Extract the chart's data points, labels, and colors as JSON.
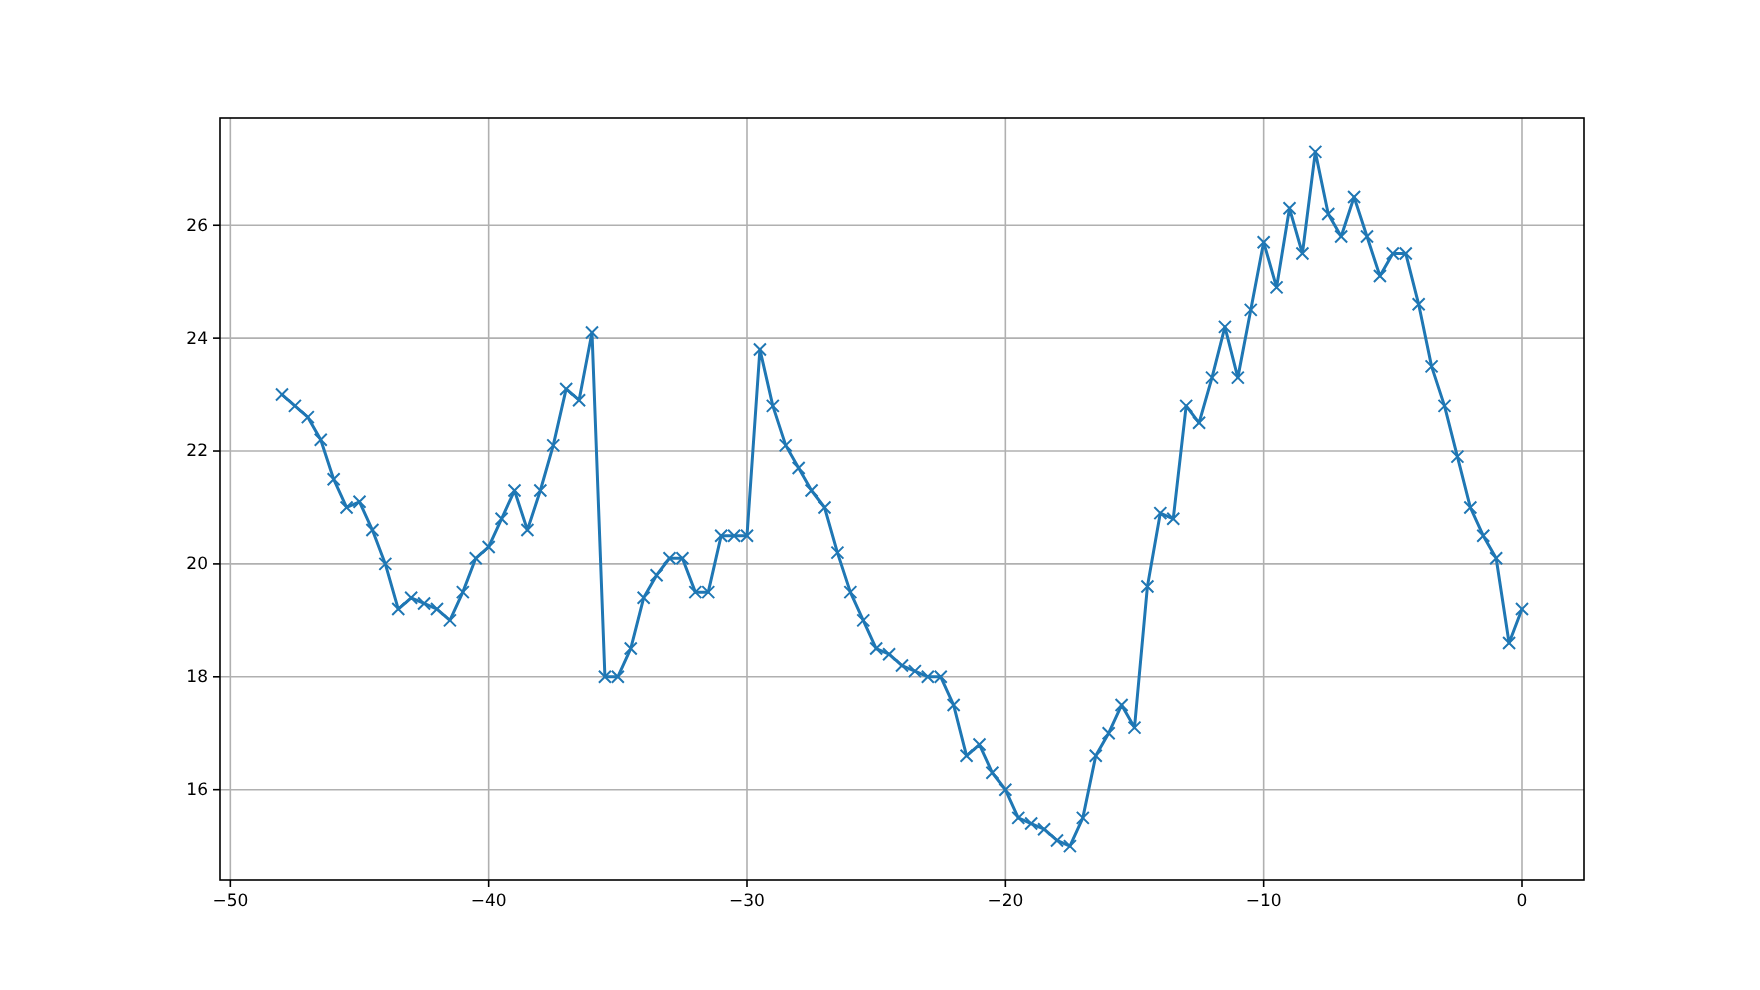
{
  "chart_data": {
    "type": "line",
    "x": [
      -48,
      -47.5,
      -47,
      -46.5,
      -46,
      -45.5,
      -45,
      -44.5,
      -44,
      -43.5,
      -43,
      -42.5,
      -42,
      -41.5,
      -41,
      -40.5,
      -40,
      -39.5,
      -39,
      -38.5,
      -38,
      -37.5,
      -37,
      -36.5,
      -36,
      -35.5,
      -35,
      -34.5,
      -34,
      -33.5,
      -33,
      -32.5,
      -32,
      -31.5,
      -31,
      -30.5,
      -30,
      -29.5,
      -29,
      -28.5,
      -28,
      -27.5,
      -27,
      -26.5,
      -26,
      -25.5,
      -25,
      -24.5,
      -24,
      -23.5,
      -23,
      -22.5,
      -22,
      -21.5,
      -21,
      -20.5,
      -20,
      -19.5,
      -19,
      -18.5,
      -18,
      -17.5,
      -17,
      -16.5,
      -16,
      -15.5,
      -15,
      -14.5,
      -14,
      -13.5,
      -13,
      -12.5,
      -12,
      -11.5,
      -11,
      -10.5,
      -10,
      -9.5,
      -9,
      -8.5,
      -8,
      -7.5,
      -7,
      -6.5,
      -6,
      -5.5,
      -5,
      -4.5,
      -4,
      -3.5,
      -3,
      -2.5,
      -2,
      -1.5,
      -1,
      -0.5,
      0
    ],
    "values": [
      23.0,
      22.8,
      22.6,
      22.2,
      21.5,
      21.0,
      21.1,
      20.6,
      20.0,
      19.2,
      19.4,
      19.3,
      19.2,
      19.0,
      19.5,
      20.1,
      20.3,
      20.8,
      21.3,
      20.6,
      21.3,
      22.1,
      23.1,
      22.9,
      24.1,
      18.0,
      18.0,
      18.5,
      19.4,
      19.8,
      20.1,
      20.1,
      19.5,
      19.5,
      20.5,
      20.5,
      20.5,
      23.8,
      22.8,
      22.1,
      21.7,
      21.3,
      21.0,
      20.2,
      19.5,
      19.0,
      18.5,
      18.4,
      18.2,
      18.1,
      18.0,
      18.0,
      17.5,
      16.6,
      16.8,
      16.3,
      16.0,
      15.5,
      15.4,
      15.3,
      15.1,
      15.0,
      15.5,
      16.6,
      17.0,
      17.5,
      17.1,
      19.6,
      20.9,
      20.8,
      22.8,
      22.5,
      23.3,
      24.2,
      23.3,
      24.5,
      25.7,
      24.9,
      26.3,
      25.5,
      27.3,
      26.2,
      25.8,
      26.5,
      25.8,
      25.1,
      25.5,
      25.5,
      24.6,
      23.5,
      22.8,
      21.9,
      21.0,
      20.5,
      20.1,
      18.6,
      19.2
    ],
    "color": "#1f77b4",
    "marker": "cross",
    "xlim": [
      -50.4,
      2.4
    ],
    "ylim": [
      14.4,
      27.9
    ],
    "xticks": [
      -50,
      -40,
      -30,
      -20,
      -10,
      0
    ],
    "yticks": [
      16,
      18,
      20,
      22,
      24,
      26
    ],
    "grid": true
  }
}
